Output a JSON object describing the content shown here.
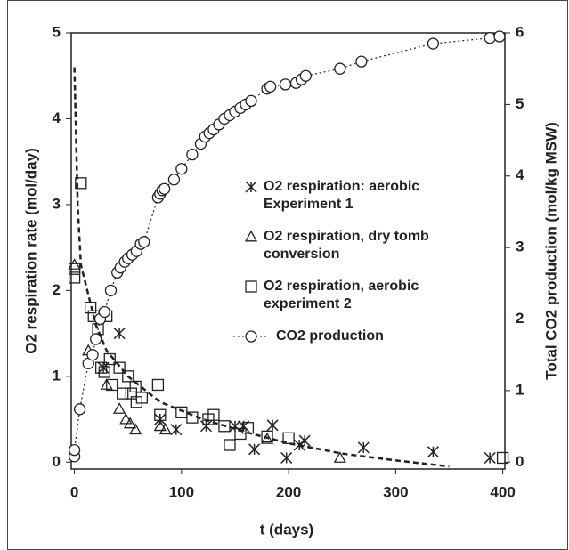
{
  "chart_data": {
    "type": "scatter",
    "xlabel": "t (days)",
    "ylabel": "O2 respiration rate (mol/day)",
    "y2label": "Total CO2 production (mol/kg MSW)",
    "xlim": [
      -3,
      402
    ],
    "xticks": [
      0,
      100,
      200,
      300,
      400
    ],
    "ylim": [
      -0.08,
      5
    ],
    "yticks": [
      0,
      1,
      2,
      3,
      4,
      5
    ],
    "y2lim": [
      -0.096,
      6
    ],
    "y2ticks": [
      0,
      1,
      2,
      3,
      4,
      5,
      6
    ],
    "series": [
      {
        "name": "O2 respiration: aerobic\nExperiment 1",
        "marker": "asterisk",
        "color": "#222222",
        "x": [
          0,
          27,
          42,
          80,
          95,
          123,
          150,
          158,
          168,
          185,
          198,
          210,
          215,
          270,
          335,
          388
        ],
        "values": [
          0.1,
          1.1,
          1.5,
          0.5,
          0.38,
          0.42,
          0.42,
          0.42,
          0.15,
          0.43,
          0.05,
          0.2,
          0.25,
          0.17,
          0.12,
          0.05
        ]
      },
      {
        "name": "O2 respiration, dry tomb\nconversion",
        "marker": "triangle",
        "color": "#222222",
        "x": [
          0,
          13,
          30,
          42,
          48,
          52,
          57,
          80,
          85,
          180,
          248
        ],
        "values": [
          2.3,
          1.3,
          0.9,
          0.62,
          0.5,
          0.45,
          0.38,
          0.42,
          0.38,
          0.27,
          0.05
        ]
      },
      {
        "name": "O2 respiration, aerobic\nexperiment 2",
        "marker": "square",
        "color": "#222222",
        "x": [
          0,
          0,
          6,
          15,
          18,
          22,
          25,
          28,
          30,
          33,
          35,
          42,
          45,
          50,
          53,
          57,
          58,
          63,
          78,
          80,
          100,
          110,
          125,
          130,
          140,
          145,
          155,
          162,
          180,
          200,
          400
        ],
        "values": [
          2.15,
          2.25,
          3.25,
          1.8,
          1.7,
          1.55,
          1.1,
          1.05,
          1.7,
          1.2,
          0.9,
          1.1,
          0.8,
          1.0,
          0.8,
          0.88,
          0.7,
          0.75,
          0.9,
          0.55,
          0.58,
          0.52,
          0.5,
          0.55,
          0.42,
          0.2,
          0.33,
          0.4,
          0.3,
          0.28,
          0.05
        ]
      },
      {
        "name": "CO2 production",
        "marker": "circle",
        "line": "dotted",
        "axis": "y2",
        "color": "#222222",
        "x": [
          0,
          0,
          5,
          13,
          17,
          20,
          24,
          28,
          34,
          40,
          43,
          47,
          50,
          54,
          58,
          62,
          65,
          78,
          80,
          82,
          84,
          93,
          100,
          110,
          118,
          122,
          126,
          130,
          135,
          140,
          145,
          150,
          155,
          160,
          165,
          180,
          183,
          197,
          207,
          212,
          216,
          248,
          268,
          335,
          388,
          397
        ],
        "values": [
          0.08,
          0.17,
          0.74,
          1.38,
          1.5,
          1.72,
          2.0,
          2.1,
          2.4,
          2.65,
          2.72,
          2.8,
          2.85,
          2.9,
          2.95,
          3.05,
          3.08,
          3.7,
          3.75,
          3.8,
          3.82,
          3.95,
          4.1,
          4.3,
          4.45,
          4.55,
          4.6,
          4.65,
          4.72,
          4.8,
          4.85,
          4.9,
          4.95,
          5.0,
          5.05,
          5.22,
          5.25,
          5.28,
          5.3,
          5.35,
          5.4,
          5.5,
          5.6,
          5.85,
          5.93,
          5.95
        ]
      },
      {
        "marker": "none",
        "line": "dashed",
        "color": "#222222",
        "x": [
          0,
          3,
          6,
          12,
          20,
          30,
          50,
          80,
          120,
          160,
          200,
          250,
          300,
          350
        ],
        "values": [
          4.6,
          3.0,
          2.3,
          2.0,
          1.6,
          1.3,
          1.0,
          0.7,
          0.5,
          0.35,
          0.22,
          0.1,
          0.02,
          -0.05
        ]
      }
    ]
  }
}
